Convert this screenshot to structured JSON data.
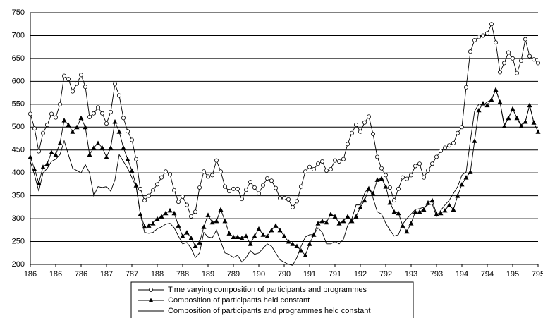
{
  "chart_data": {
    "type": "line",
    "categories": [
      "186",
      null,
      null,
      null,
      null,
      null,
      "186",
      null,
      null,
      null,
      null,
      null,
      "786",
      null,
      null,
      null,
      null,
      null,
      "187",
      null,
      null,
      null,
      null,
      null,
      "787",
      null,
      null,
      null,
      null,
      null,
      "188",
      null,
      null,
      null,
      null,
      null,
      "788",
      null,
      null,
      null,
      null,
      null,
      "189",
      null,
      null,
      null,
      null,
      null,
      "789",
      null,
      null,
      null,
      null,
      null,
      "190",
      null,
      null,
      null,
      null,
      null,
      "790",
      null,
      null,
      null,
      null,
      null,
      "191",
      null,
      null,
      null,
      null,
      null,
      "791",
      null,
      null,
      null,
      null,
      null,
      "192",
      null,
      null,
      null,
      null,
      null,
      "792",
      null,
      null,
      null,
      null,
      null,
      "193",
      null,
      null,
      null,
      null,
      null,
      "793",
      null,
      null,
      null,
      null,
      null,
      "194",
      null,
      null,
      null,
      null,
      null,
      "794",
      null,
      null,
      null,
      null,
      null,
      "195",
      null,
      null,
      null,
      null,
      null,
      "795"
    ],
    "series": [
      {
        "name": "Time varying composition of participants and programmes",
        "color": "#000000",
        "marker": "circle",
        "values": [
          529,
          497,
          447,
          487,
          505,
          529,
          521,
          550,
          612,
          605,
          578,
          595,
          614,
          588,
          522,
          530,
          543,
          530,
          508,
          533,
          594,
          569,
          520,
          491,
          472,
          430,
          365,
          340,
          350,
          362,
          375,
          390,
          403,
          397,
          362,
          337,
          348,
          330,
          305,
          315,
          368,
          403,
          392,
          395,
          427,
          403,
          370,
          360,
          365,
          365,
          343,
          363,
          380,
          368,
          355,
          373,
          388,
          383,
          367,
          345,
          345,
          342,
          325,
          338,
          370,
          403,
          413,
          408,
          420,
          425,
          405,
          408,
          427,
          425,
          430,
          463,
          487,
          505,
          490,
          510,
          523,
          485,
          435,
          410,
          395,
          368,
          340,
          365,
          390,
          387,
          395,
          415,
          420,
          390,
          405,
          420,
          435,
          448,
          455,
          460,
          465,
          487,
          500,
          587,
          665,
          690,
          697,
          700,
          705,
          725,
          685,
          620,
          640,
          663,
          650,
          618,
          645,
          692,
          655,
          648,
          640
        ]
      },
      {
        "name": "Composition of participants held constant",
        "color": "#000000",
        "marker": "triangle",
        "values": [
          435,
          408,
          378,
          413,
          420,
          445,
          440,
          465,
          515,
          505,
          490,
          500,
          520,
          500,
          440,
          455,
          465,
          455,
          435,
          455,
          512,
          490,
          455,
          430,
          405,
          373,
          310,
          283,
          285,
          290,
          300,
          305,
          312,
          318,
          312,
          285,
          262,
          270,
          258,
          240,
          248,
          282,
          308,
          292,
          295,
          320,
          295,
          268,
          260,
          260,
          258,
          262,
          245,
          262,
          278,
          265,
          262,
          275,
          285,
          275,
          262,
          250,
          245,
          240,
          230,
          220,
          245,
          265,
          290,
          295,
          292,
          310,
          305,
          290,
          295,
          305,
          295,
          305,
          325,
          340,
          365,
          355,
          385,
          388,
          370,
          335,
          315,
          312,
          285,
          272,
          290,
          315,
          315,
          320,
          335,
          340,
          310,
          312,
          318,
          330,
          320,
          350,
          375,
          390,
          402,
          470,
          537,
          552,
          548,
          560,
          582,
          555,
          502,
          520,
          540,
          520,
          502,
          512,
          548,
          510,
          490
        ]
      },
      {
        "name": "Composition of participants and programmes held constant",
        "color": "#000000",
        "marker": "none",
        "values": [
          425,
          395,
          360,
          400,
          410,
          425,
          430,
          440,
          470,
          440,
          410,
          405,
          400,
          418,
          400,
          350,
          370,
          368,
          370,
          360,
          385,
          440,
          425,
          410,
          390,
          370,
          310,
          270,
          268,
          270,
          278,
          282,
          288,
          290,
          280,
          262,
          245,
          248,
          235,
          215,
          225,
          270,
          260,
          258,
          275,
          250,
          225,
          222,
          215,
          220,
          205,
          215,
          230,
          222,
          225,
          235,
          245,
          240,
          225,
          210,
          205,
          200,
          198,
          215,
          240,
          260,
          265,
          265,
          280,
          270,
          245,
          245,
          250,
          245,
          255,
          285,
          300,
          330,
          330,
          355,
          370,
          345,
          315,
          310,
          290,
          275,
          262,
          265,
          288,
          300,
          310,
          320,
          322,
          325,
          330,
          332,
          305,
          318,
          330,
          340,
          355,
          370,
          395,
          402,
          470,
          535,
          550,
          548,
          555,
          560,
          582,
          555,
          505,
          520,
          540,
          520,
          505,
          512,
          548,
          510,
          490
        ]
      }
    ],
    "ylim": [
      200,
      750
    ],
    "yticks": [
      200,
      250,
      300,
      350,
      400,
      450,
      500,
      550,
      600,
      650,
      700,
      750
    ],
    "grid": true,
    "legend": "bottom"
  }
}
